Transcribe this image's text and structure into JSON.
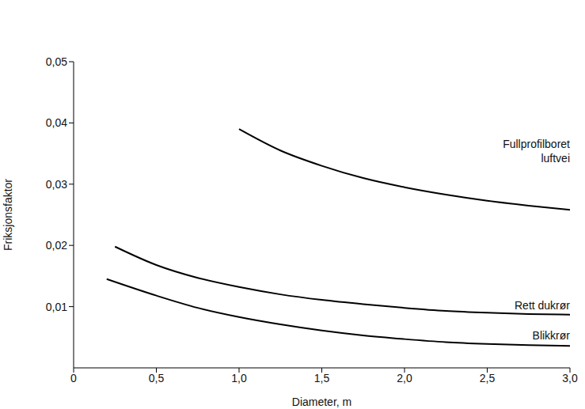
{
  "chart_data": {
    "type": "line",
    "x_label": "Diameter, m",
    "y_label": "Friksjonsfaktor",
    "xlim": [
      0,
      3.0
    ],
    "ylim": [
      0,
      0.05
    ],
    "xticks": [
      0,
      {
        "value": 0.5,
        "label": "0,5"
      },
      {
        "value": 1.0,
        "label": "1,0"
      },
      {
        "value": 1.5,
        "label": "1,5"
      },
      {
        "value": 2.0,
        "label": "2,0"
      },
      {
        "value": 2.5,
        "label": "2,5"
      },
      {
        "value": 3.0,
        "label": "3,0"
      }
    ],
    "yticks": [
      {
        "value": 0.01,
        "label": "0,01"
      },
      {
        "value": 0.02,
        "label": "0,02"
      },
      {
        "value": 0.03,
        "label": "0,03"
      },
      {
        "value": 0.04,
        "label": "0,04"
      },
      {
        "value": 0.05,
        "label": "0,05"
      }
    ],
    "grid": false,
    "series": [
      {
        "name": "Fullprofilboret luftvei",
        "color": "#000000",
        "marker": "none",
        "line_style": "solid",
        "x": [
          1.0,
          1.25,
          1.5,
          1.75,
          2.0,
          2.25,
          2.5,
          2.75,
          3.0
        ],
        "values": [
          0.039,
          0.0355,
          0.033,
          0.031,
          0.0295,
          0.0283,
          0.0273,
          0.0265,
          0.0258
        ]
      },
      {
        "name": "Rett dukrør",
        "color": "#000000",
        "marker": "none",
        "line_style": "solid",
        "x": [
          0.25,
          0.5,
          0.75,
          1.0,
          1.25,
          1.5,
          1.75,
          2.0,
          2.25,
          2.5,
          2.75,
          3.0
        ],
        "values": [
          0.0198,
          0.0168,
          0.0147,
          0.0132,
          0.012,
          0.0111,
          0.0104,
          0.0098,
          0.0093,
          0.009,
          0.0088,
          0.0087
        ]
      },
      {
        "name": "Blikkrør",
        "color": "#000000",
        "marker": "none",
        "line_style": "solid",
        "x": [
          0.2,
          0.5,
          0.75,
          1.0,
          1.25,
          1.5,
          1.75,
          2.0,
          2.25,
          2.5,
          2.75,
          3.0
        ],
        "values": [
          0.0145,
          0.0118,
          0.0098,
          0.0083,
          0.0071,
          0.0061,
          0.0053,
          0.0047,
          0.0042,
          0.0039,
          0.0037,
          0.0036
        ]
      }
    ]
  }
}
